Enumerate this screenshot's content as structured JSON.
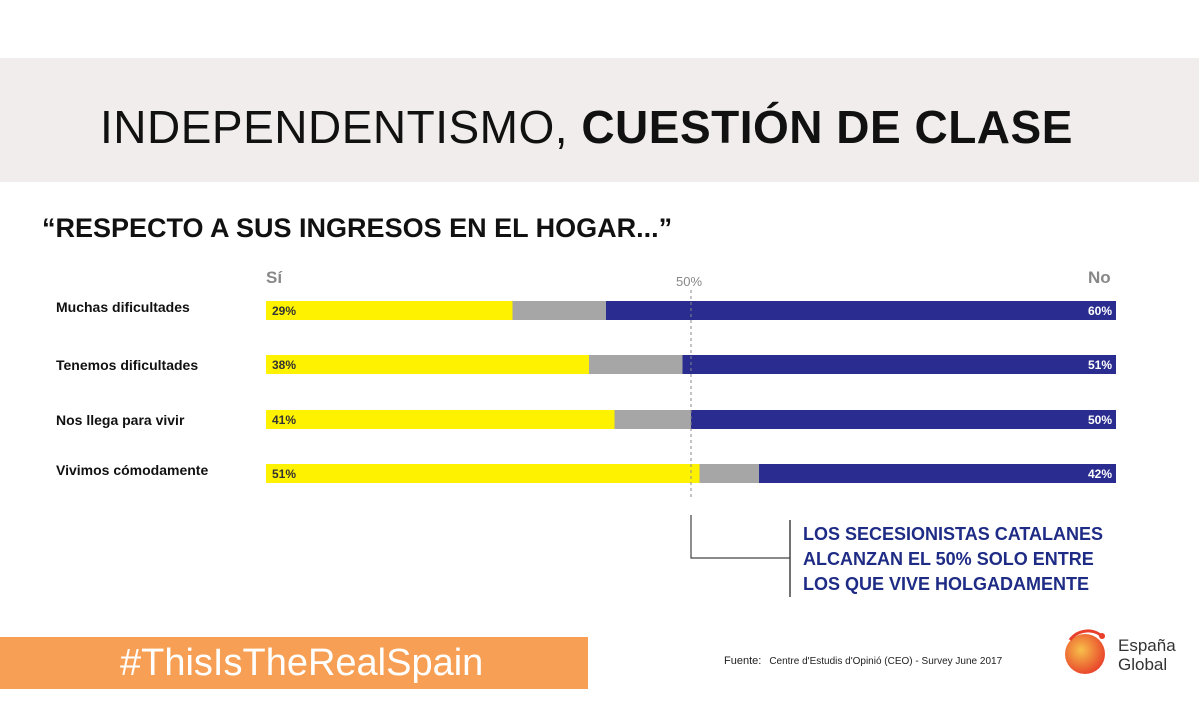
{
  "title": {
    "part1": "INDEPENDENTISMO,",
    "part2": "CUESTIÓN DE CLASE"
  },
  "subtitle": "“RESPECTO A SUS INGRESOS EN EL HOGAR...”",
  "colors": {
    "si": "#fff200",
    "undecided": "#a6a6a6",
    "no": "#2a2d8f",
    "accent": "#f7a055",
    "callout": "#1f2c86"
  },
  "chart_data": {
    "type": "bar",
    "orientation": "horizontal",
    "stacked": true,
    "column_headers": {
      "left": "Sí",
      "right": "No",
      "reference": "50%"
    },
    "categories": [
      "Muchas dificultades",
      "Tenemos dificultades",
      "Nos llega para vivir",
      "Vivimos cómodamente"
    ],
    "series": [
      {
        "name": "Sí",
        "values": [
          29,
          38,
          41,
          51
        ],
        "labels": [
          "29%",
          "38%",
          "41%",
          "51%"
        ]
      },
      {
        "name": "",
        "values": [
          11,
          11,
          9,
          7
        ],
        "labels": []
      },
      {
        "name": "No",
        "values": [
          60,
          51,
          50,
          42
        ],
        "labels": [
          "60%",
          "51%",
          "50%",
          "42%"
        ]
      }
    ],
    "reference_line": 50,
    "xlim": [
      0,
      100
    ]
  },
  "callout": "LOS SECESIONISTAS CATALANES\nALCANZAN EL 50% SOLO ENTRE\nLOS QUE VIVE HOLGADAMENTE",
  "hashtag": "#ThisIsTheRealSpain",
  "source": {
    "label": "Fuente:",
    "text": "Centre d'Estudis d'Opinió (CEO) - Survey June 2017"
  },
  "logo": {
    "line1": "España",
    "line2": "Global"
  }
}
